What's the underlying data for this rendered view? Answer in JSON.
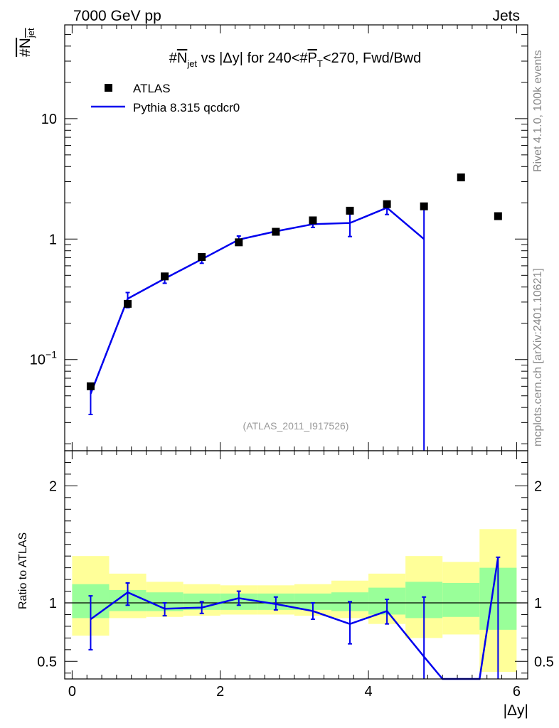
{
  "header": {
    "energy_label": "7000 GeV pp",
    "category_label": "Jets",
    "side_text_top": "Rivet 4.1.0,  100k events",
    "side_text_bottom": "mcplots.cern.ch [arXiv:2401.10621]"
  },
  "chart_data": [
    {
      "type": "scatter",
      "panel": "main",
      "title": "#N_jet vs |Δy| for 240<#P_T<270, Fwd/Bwd",
      "title_parts": {
        "a": "#",
        "b": "N",
        "b_sub": "jet",
        "c": " vs |Δy| for 240<#",
        "d": "P",
        "d_sub": "T",
        "e": "<270, Fwd/Bwd"
      },
      "ylabel": "#N_jet",
      "ylabel_parts": {
        "main": "#N",
        "sub": "jet"
      },
      "yscale": "log",
      "ylim": [
        0.0175,
        60
      ],
      "xlim": [
        -0.1,
        6.15
      ],
      "y_tick_labels": [
        {
          "value": 0.1,
          "base": "10",
          "exp": "−1"
        },
        {
          "value": 1,
          "text": "1"
        },
        {
          "value": 10,
          "text": "10"
        }
      ],
      "watermark": "(ATLAS_2011_I917526)",
      "legend": {
        "position": "top-left",
        "entries": [
          "ATLAS",
          "Pythia 8.315 qcdcr0"
        ]
      },
      "series": [
        {
          "name": "ATLAS",
          "style": "markers",
          "color": "#000000",
          "x": [
            0.25,
            0.75,
            1.25,
            1.75,
            2.25,
            2.75,
            3.25,
            3.75,
            4.25,
            4.75,
            5.25,
            5.75
          ],
          "y": [
            0.06,
            0.29,
            0.49,
            0.71,
            0.94,
            1.15,
            1.43,
            1.72,
            1.95,
            1.87,
            3.25,
            1.55
          ]
        },
        {
          "name": "Pythia 8.315 qcdcr0",
          "style": "line",
          "color": "#0000ee",
          "x": [
            0.25,
            0.75,
            1.25,
            1.75,
            2.25,
            2.75,
            3.25,
            3.75,
            4.25,
            4.75
          ],
          "y": [
            0.052,
            0.32,
            0.47,
            0.68,
            0.99,
            1.16,
            1.33,
            1.36,
            1.82,
            1.0
          ],
          "err_low": [
            0.035,
            0.27,
            0.43,
            0.63,
            0.93,
            1.1,
            1.25,
            1.05,
            1.6,
            0.012
          ],
          "err_high": [
            0.062,
            0.36,
            0.5,
            0.72,
            1.06,
            1.21,
            1.39,
            1.62,
            1.96,
            1.98
          ]
        }
      ]
    },
    {
      "type": "line",
      "panel": "ratio",
      "ylabel": "Ratio to ATLAS",
      "ylim": [
        0.35,
        2.3
      ],
      "xlim": [
        -0.1,
        6.15
      ],
      "xlabel": "|Δy|",
      "x_tick_labels": [
        {
          "value": 0,
          "text": "0"
        },
        {
          "value": 2,
          "text": "2"
        },
        {
          "value": 4,
          "text": "4"
        },
        {
          "value": 6,
          "text": "6"
        }
      ],
      "y_tick_labels": [
        {
          "value": 0.5,
          "text": "0.5"
        },
        {
          "value": 1,
          "text": "1"
        },
        {
          "value": 2,
          "text": "2"
        }
      ],
      "bands": {
        "bin_edges": [
          0,
          0.5,
          1.0,
          1.5,
          2.0,
          2.5,
          3.0,
          3.5,
          4.0,
          4.5,
          5.0,
          5.5,
          6.0
        ],
        "yellow_low": [
          0.72,
          0.87,
          0.88,
          0.89,
          0.9,
          0.9,
          0.89,
          0.87,
          0.82,
          0.7,
          0.73,
          0.41
        ],
        "yellow_high": [
          1.4,
          1.25,
          1.18,
          1.16,
          1.15,
          1.15,
          1.16,
          1.19,
          1.25,
          1.4,
          1.35,
          1.63
        ],
        "green_low": [
          0.87,
          0.93,
          0.93,
          0.94,
          0.94,
          0.94,
          0.94,
          0.93,
          0.9,
          0.87,
          0.88,
          0.77
        ],
        "green_high": [
          1.16,
          1.11,
          1.09,
          1.08,
          1.08,
          1.08,
          1.08,
          1.09,
          1.13,
          1.18,
          1.17,
          1.3
        ],
        "yellow_color": "#ffff99",
        "green_color": "#99ff99"
      },
      "series": [
        {
          "name": "Pythia 8.315 qcdcr0 / ATLAS",
          "color": "#0000ee",
          "x": [
            0.25,
            0.75,
            1.25,
            1.75,
            2.25,
            2.75,
            3.25,
            3.75,
            4.25,
            4.75,
            5.0,
            5.5,
            5.75
          ],
          "y": [
            0.86,
            1.09,
            0.95,
            0.96,
            1.04,
            0.99,
            0.93,
            0.82,
            0.93,
            0.54,
            0.35,
            0.35,
            1.39
          ],
          "err_low": [
            0.6,
            0.98,
            0.89,
            0.91,
            0.98,
            0.94,
            0.86,
            0.65,
            0.82,
            0.35,
            null,
            null,
            0.35
          ],
          "err_high": [
            1.06,
            1.17,
            1.0,
            1.01,
            1.1,
            1.05,
            1.0,
            1.01,
            1.03,
            1.05,
            null,
            null,
            1.39
          ],
          "point_flags": [
            1,
            1,
            1,
            1,
            1,
            1,
            1,
            1,
            1,
            1,
            0,
            0,
            1
          ]
        }
      ]
    }
  ]
}
